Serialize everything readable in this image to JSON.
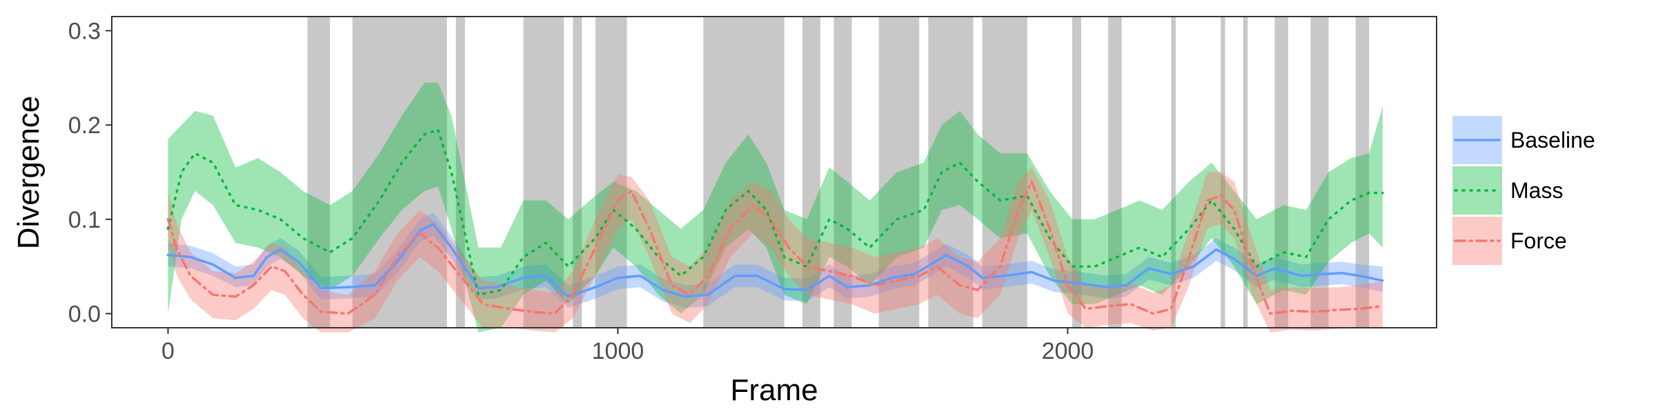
{
  "chart_data": {
    "type": "line",
    "xlabel": "Frame",
    "ylabel": "Divergence",
    "xlim": [
      -125,
      2820
    ],
    "ylim": [
      -0.015,
      0.315
    ],
    "x_ticks": [
      0,
      1000,
      2000
    ],
    "x_tick_labels": [
      "0",
      "1000",
      "2000"
    ],
    "y_ticks": [
      0.0,
      0.1,
      0.2,
      0.3
    ],
    "y_tick_labels": [
      "0.0",
      "0.1",
      "0.2",
      "0.3"
    ],
    "grid": false,
    "legend_position": "right",
    "shaded_regions": [
      [
        310,
        360
      ],
      [
        410,
        620
      ],
      [
        640,
        660
      ],
      [
        790,
        880
      ],
      [
        900,
        920
      ],
      [
        950,
        1020
      ],
      [
        1190,
        1370
      ],
      [
        1410,
        1450
      ],
      [
        1480,
        1520
      ],
      [
        1580,
        1670
      ],
      [
        1690,
        1790
      ],
      [
        1810,
        1910
      ],
      [
        2010,
        2030
      ],
      [
        2090,
        2120
      ],
      [
        2230,
        2240
      ],
      [
        2340,
        2350
      ],
      [
        2390,
        2400
      ],
      [
        2460,
        2490
      ],
      [
        2540,
        2580
      ],
      [
        2640,
        2670
      ]
    ],
    "series": [
      {
        "name": "Baseline",
        "color": "#619CFF",
        "line_style": "solid",
        "points": [
          [
            0,
            0.062,
            0.05,
            0.075
          ],
          [
            50,
            0.06,
            0.048,
            0.072
          ],
          [
            100,
            0.052,
            0.04,
            0.064
          ],
          [
            150,
            0.038,
            0.028,
            0.05
          ],
          [
            190,
            0.04,
            0.03,
            0.052
          ],
          [
            220,
            0.06,
            0.05,
            0.072
          ],
          [
            250,
            0.068,
            0.058,
            0.08
          ],
          [
            290,
            0.055,
            0.045,
            0.067
          ],
          [
            340,
            0.027,
            0.015,
            0.039
          ],
          [
            400,
            0.028,
            0.016,
            0.04
          ],
          [
            460,
            0.03,
            0.018,
            0.042
          ],
          [
            510,
            0.055,
            0.043,
            0.067
          ],
          [
            560,
            0.088,
            0.076,
            0.1
          ],
          [
            590,
            0.095,
            0.083,
            0.107
          ],
          [
            630,
            0.07,
            0.058,
            0.082
          ],
          [
            690,
            0.027,
            0.015,
            0.039
          ],
          [
            730,
            0.028,
            0.016,
            0.04
          ],
          [
            790,
            0.038,
            0.026,
            0.05
          ],
          [
            840,
            0.04,
            0.028,
            0.052
          ],
          [
            890,
            0.018,
            0.006,
            0.03
          ],
          [
            950,
            0.028,
            0.016,
            0.04
          ],
          [
            1000,
            0.038,
            0.026,
            0.05
          ],
          [
            1050,
            0.04,
            0.028,
            0.052
          ],
          [
            1100,
            0.025,
            0.013,
            0.037
          ],
          [
            1150,
            0.018,
            0.006,
            0.03
          ],
          [
            1200,
            0.02,
            0.008,
            0.032
          ],
          [
            1260,
            0.04,
            0.028,
            0.052
          ],
          [
            1310,
            0.04,
            0.028,
            0.052
          ],
          [
            1370,
            0.026,
            0.014,
            0.038
          ],
          [
            1420,
            0.025,
            0.013,
            0.037
          ],
          [
            1470,
            0.04,
            0.028,
            0.052
          ],
          [
            1510,
            0.028,
            0.016,
            0.04
          ],
          [
            1560,
            0.03,
            0.018,
            0.042
          ],
          [
            1610,
            0.038,
            0.026,
            0.05
          ],
          [
            1660,
            0.042,
            0.03,
            0.054
          ],
          [
            1730,
            0.062,
            0.05,
            0.074
          ],
          [
            1780,
            0.05,
            0.038,
            0.062
          ],
          [
            1810,
            0.038,
            0.026,
            0.05
          ],
          [
            1860,
            0.04,
            0.028,
            0.052
          ],
          [
            1920,
            0.044,
            0.032,
            0.056
          ],
          [
            1970,
            0.035,
            0.023,
            0.047
          ],
          [
            2030,
            0.032,
            0.02,
            0.044
          ],
          [
            2090,
            0.028,
            0.016,
            0.04
          ],
          [
            2130,
            0.03,
            0.018,
            0.042
          ],
          [
            2180,
            0.048,
            0.036,
            0.06
          ],
          [
            2230,
            0.042,
            0.03,
            0.054
          ],
          [
            2280,
            0.05,
            0.038,
            0.062
          ],
          [
            2330,
            0.068,
            0.056,
            0.08
          ],
          [
            2370,
            0.058,
            0.046,
            0.07
          ],
          [
            2420,
            0.04,
            0.028,
            0.052
          ],
          [
            2460,
            0.048,
            0.036,
            0.06
          ],
          [
            2520,
            0.04,
            0.028,
            0.052
          ],
          [
            2570,
            0.042,
            0.03,
            0.054
          ],
          [
            2610,
            0.043,
            0.031,
            0.055
          ],
          [
            2650,
            0.04,
            0.028,
            0.052
          ],
          [
            2700,
            0.035,
            0.023,
            0.05
          ]
        ]
      },
      {
        "name": "Mass",
        "color": "#00BA38",
        "line_style": "dotted",
        "points": [
          [
            0,
            0.09,
            0.0,
            0.185
          ],
          [
            30,
            0.15,
            0.1,
            0.2
          ],
          [
            60,
            0.17,
            0.13,
            0.215
          ],
          [
            100,
            0.16,
            0.115,
            0.21
          ],
          [
            150,
            0.115,
            0.075,
            0.155
          ],
          [
            200,
            0.11,
            0.07,
            0.165
          ],
          [
            250,
            0.1,
            0.06,
            0.15
          ],
          [
            300,
            0.08,
            0.04,
            0.13
          ],
          [
            360,
            0.065,
            0.025,
            0.115
          ],
          [
            410,
            0.08,
            0.04,
            0.13
          ],
          [
            470,
            0.12,
            0.08,
            0.17
          ],
          [
            520,
            0.16,
            0.11,
            0.21
          ],
          [
            570,
            0.19,
            0.13,
            0.245
          ],
          [
            600,
            0.195,
            0.135,
            0.245
          ],
          [
            630,
            0.15,
            0.09,
            0.21
          ],
          [
            690,
            0.02,
            -0.02,
            0.07
          ],
          [
            740,
            0.025,
            -0.015,
            0.07
          ],
          [
            790,
            0.06,
            0.02,
            0.12
          ],
          [
            840,
            0.075,
            0.035,
            0.12
          ],
          [
            890,
            0.05,
            0.01,
            0.1
          ],
          [
            950,
            0.08,
            0.04,
            0.125
          ],
          [
            990,
            0.11,
            0.07,
            0.14
          ],
          [
            1040,
            0.09,
            0.05,
            0.13
          ],
          [
            1090,
            0.06,
            0.02,
            0.11
          ],
          [
            1140,
            0.04,
            0.0,
            0.09
          ],
          [
            1190,
            0.06,
            0.02,
            0.11
          ],
          [
            1240,
            0.11,
            0.07,
            0.16
          ],
          [
            1290,
            0.13,
            0.09,
            0.19
          ],
          [
            1330,
            0.11,
            0.07,
            0.16
          ],
          [
            1370,
            0.06,
            0.02,
            0.11
          ],
          [
            1420,
            0.05,
            0.01,
            0.1
          ],
          [
            1470,
            0.1,
            0.06,
            0.155
          ],
          [
            1510,
            0.09,
            0.05,
            0.14
          ],
          [
            1560,
            0.07,
            0.03,
            0.12
          ],
          [
            1620,
            0.1,
            0.06,
            0.15
          ],
          [
            1680,
            0.11,
            0.07,
            0.16
          ],
          [
            1720,
            0.15,
            0.11,
            0.2
          ],
          [
            1760,
            0.16,
            0.115,
            0.215
          ],
          [
            1800,
            0.14,
            0.1,
            0.19
          ],
          [
            1850,
            0.12,
            0.08,
            0.17
          ],
          [
            1910,
            0.125,
            0.085,
            0.17
          ],
          [
            1960,
            0.08,
            0.04,
            0.13
          ],
          [
            2010,
            0.05,
            0.01,
            0.1
          ],
          [
            2060,
            0.05,
            0.01,
            0.1
          ],
          [
            2110,
            0.06,
            0.02,
            0.11
          ],
          [
            2160,
            0.07,
            0.03,
            0.12
          ],
          [
            2210,
            0.06,
            0.02,
            0.11
          ],
          [
            2270,
            0.09,
            0.05,
            0.14
          ],
          [
            2320,
            0.12,
            0.08,
            0.16
          ],
          [
            2370,
            0.09,
            0.05,
            0.13
          ],
          [
            2420,
            0.05,
            0.01,
            0.1
          ],
          [
            2480,
            0.065,
            0.025,
            0.115
          ],
          [
            2530,
            0.06,
            0.02,
            0.11
          ],
          [
            2580,
            0.1,
            0.055,
            0.15
          ],
          [
            2630,
            0.12,
            0.075,
            0.165
          ],
          [
            2670,
            0.128,
            0.085,
            0.17
          ],
          [
            2700,
            0.128,
            0.07,
            0.22
          ]
        ]
      },
      {
        "name": "Force",
        "color": "#F8766D",
        "line_style": "dashdot",
        "points": [
          [
            0,
            0.1,
            0.07,
            0.13
          ],
          [
            20,
            0.068,
            0.04,
            0.095
          ],
          [
            50,
            0.04,
            0.015,
            0.065
          ],
          [
            100,
            0.02,
            -0.005,
            0.045
          ],
          [
            150,
            0.018,
            -0.007,
            0.043
          ],
          [
            190,
            0.03,
            0.005,
            0.055
          ],
          [
            230,
            0.05,
            0.025,
            0.075
          ],
          [
            260,
            0.045,
            0.02,
            0.07
          ],
          [
            300,
            0.02,
            -0.005,
            0.045
          ],
          [
            340,
            0.002,
            -0.02,
            0.025
          ],
          [
            400,
            0.0,
            -0.02,
            0.02
          ],
          [
            460,
            0.02,
            -0.005,
            0.045
          ],
          [
            510,
            0.06,
            0.035,
            0.085
          ],
          [
            560,
            0.085,
            0.06,
            0.11
          ],
          [
            600,
            0.07,
            0.045,
            0.095
          ],
          [
            650,
            0.04,
            0.015,
            0.065
          ],
          [
            700,
            0.01,
            -0.015,
            0.035
          ],
          [
            760,
            0.005,
            -0.015,
            0.03
          ],
          [
            810,
            0.002,
            -0.018,
            0.025
          ],
          [
            860,
            0.0,
            -0.02,
            0.022
          ],
          [
            900,
            0.02,
            -0.005,
            0.045
          ],
          [
            950,
            0.07,
            0.04,
            0.1
          ],
          [
            1000,
            0.12,
            0.09,
            0.148
          ],
          [
            1030,
            0.13,
            0.1,
            0.145
          ],
          [
            1070,
            0.09,
            0.06,
            0.12
          ],
          [
            1120,
            0.03,
            0.0,
            0.06
          ],
          [
            1160,
            0.02,
            -0.01,
            0.05
          ],
          [
            1200,
            0.04,
            0.01,
            0.07
          ],
          [
            1250,
            0.09,
            0.06,
            0.12
          ],
          [
            1300,
            0.115,
            0.085,
            0.14
          ],
          [
            1340,
            0.1,
            0.07,
            0.13
          ],
          [
            1380,
            0.07,
            0.04,
            0.1
          ],
          [
            1420,
            0.05,
            0.02,
            0.08
          ],
          [
            1470,
            0.045,
            0.015,
            0.075
          ],
          [
            1520,
            0.04,
            0.01,
            0.07
          ],
          [
            1570,
            0.03,
            0.0,
            0.06
          ],
          [
            1620,
            0.035,
            0.005,
            0.065
          ],
          [
            1670,
            0.04,
            0.01,
            0.07
          ],
          [
            1710,
            0.05,
            0.02,
            0.08
          ],
          [
            1760,
            0.03,
            0.0,
            0.06
          ],
          [
            1800,
            0.025,
            -0.005,
            0.055
          ],
          [
            1850,
            0.05,
            0.02,
            0.08
          ],
          [
            1890,
            0.11,
            0.08,
            0.14
          ],
          [
            1920,
            0.14,
            0.11,
            0.155
          ],
          [
            1960,
            0.09,
            0.06,
            0.12
          ],
          [
            2000,
            0.03,
            0.0,
            0.06
          ],
          [
            2040,
            0.005,
            -0.015,
            0.03
          ],
          [
            2090,
            0.008,
            -0.012,
            0.03
          ],
          [
            2140,
            0.01,
            -0.01,
            0.032
          ],
          [
            2190,
            0.0,
            -0.018,
            0.022
          ],
          [
            2230,
            0.005,
            -0.015,
            0.03
          ],
          [
            2270,
            0.06,
            0.03,
            0.09
          ],
          [
            2310,
            0.12,
            0.09,
            0.15
          ],
          [
            2340,
            0.125,
            0.095,
            0.15
          ],
          [
            2370,
            0.11,
            0.08,
            0.14
          ],
          [
            2410,
            0.05,
            0.02,
            0.08
          ],
          [
            2450,
            0.0,
            -0.02,
            0.025
          ],
          [
            2500,
            0.003,
            -0.017,
            0.028
          ],
          [
            2550,
            0.002,
            -0.018,
            0.027
          ],
          [
            2600,
            0.004,
            -0.016,
            0.028
          ],
          [
            2650,
            0.005,
            -0.015,
            0.03
          ],
          [
            2700,
            0.008,
            -0.015,
            0.035
          ]
        ]
      }
    ]
  }
}
